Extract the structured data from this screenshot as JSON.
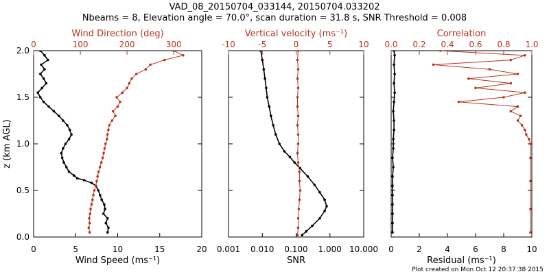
{
  "title": {
    "line1": "VAD_08_20150704_033144, 20150704.033202",
    "line2": "Nbeams = 8, Elevation angle = 70.0°, scan duration = 31.8 s, SNR Threshold = 0.008"
  },
  "footer": "Plot created on Mon Oct 12 20:37:38 2015",
  "colors": {
    "black": "#000000",
    "red": "#b5341f"
  },
  "chart_data": [
    {
      "type": "line",
      "panel": "wind",
      "ylabel": "z (km AGL)",
      "ylim": [
        0,
        2
      ],
      "yticks": [
        "0.0",
        "0.5",
        "1.0",
        "1.5",
        "2.0"
      ],
      "bottom_axis": {
        "label": "Wind Speed (ms⁻¹)",
        "range": [
          0,
          20
        ],
        "ticks": [
          "0",
          "5",
          "10",
          "15",
          "20"
        ]
      },
      "top_axis": {
        "label": "Wind Direction (deg)",
        "range": [
          0,
          360
        ],
        "ticks": [
          "0",
          "100",
          "200",
          "300"
        ]
      },
      "series": [
        {
          "color": "#000000",
          "axis": "bottom",
          "points": [
            [
              8.8,
              0.05
            ],
            [
              8.9,
              0.1
            ],
            [
              8.6,
              0.15
            ],
            [
              8.8,
              0.2
            ],
            [
              8.3,
              0.25
            ],
            [
              8.5,
              0.3
            ],
            [
              8.4,
              0.35
            ],
            [
              8.1,
              0.4
            ],
            [
              7.9,
              0.45
            ],
            [
              7.7,
              0.5
            ],
            [
              7.4,
              0.55
            ],
            [
              6.9,
              0.58
            ],
            [
              6.0,
              0.61
            ],
            [
              5.2,
              0.63
            ],
            [
              4.8,
              0.66
            ],
            [
              4.2,
              0.7
            ],
            [
              3.9,
              0.75
            ],
            [
              3.6,
              0.8
            ],
            [
              3.4,
              0.85
            ],
            [
              3.3,
              0.9
            ],
            [
              3.5,
              0.95
            ],
            [
              3.8,
              1.0
            ],
            [
              4.2,
              1.05
            ],
            [
              4.5,
              1.1
            ],
            [
              4.3,
              1.15
            ],
            [
              4.0,
              1.2
            ],
            [
              3.5,
              1.25
            ],
            [
              3.0,
              1.3
            ],
            [
              2.4,
              1.35
            ],
            [
              1.8,
              1.4
            ],
            [
              1.2,
              1.45
            ],
            [
              0.8,
              1.5
            ],
            [
              0.5,
              1.55
            ],
            [
              1.0,
              1.6
            ],
            [
              1.5,
              1.65
            ],
            [
              1.2,
              1.7
            ],
            [
              0.8,
              1.75
            ],
            [
              1.3,
              1.8
            ],
            [
              0.9,
              1.85
            ],
            [
              1.7,
              1.9
            ],
            [
              1.3,
              1.95
            ],
            [
              0.8,
              2.0
            ]
          ]
        },
        {
          "color": "#b5341f",
          "axis": "top",
          "points": [
            [
              120,
              0.05
            ],
            [
              118,
              0.1
            ],
            [
              120,
              0.15
            ],
            [
              119,
              0.2
            ],
            [
              121,
              0.25
            ],
            [
              122,
              0.3
            ],
            [
              124,
              0.35
            ],
            [
              126,
              0.4
            ],
            [
              128,
              0.45
            ],
            [
              130,
              0.5
            ],
            [
              133,
              0.55
            ],
            [
              135,
              0.6
            ],
            [
              137,
              0.65
            ],
            [
              139,
              0.7
            ],
            [
              142,
              0.75
            ],
            [
              145,
              0.8
            ],
            [
              148,
              0.85
            ],
            [
              150,
              0.9
            ],
            [
              152,
              0.95
            ],
            [
              154,
              1.0
            ],
            [
              157,
              1.05
            ],
            [
              158,
              1.1
            ],
            [
              160,
              1.15
            ],
            [
              162,
              1.2
            ],
            [
              168,
              1.25
            ],
            [
              175,
              1.3
            ],
            [
              170,
              1.35
            ],
            [
              180,
              1.4
            ],
            [
              185,
              1.45
            ],
            [
              178,
              1.5
            ],
            [
              190,
              1.55
            ],
            [
              200,
              1.6
            ],
            [
              205,
              1.65
            ],
            [
              210,
              1.7
            ],
            [
              220,
              1.75
            ],
            [
              240,
              1.8
            ],
            [
              250,
              1.85
            ],
            [
              280,
              1.9
            ],
            [
              320,
              1.95
            ],
            [
              300,
              2.0
            ]
          ]
        }
      ]
    },
    {
      "type": "line",
      "panel": "snr",
      "xscale": "log",
      "ylim": [
        0,
        2
      ],
      "bottom_axis": {
        "label": "SNR",
        "range": [
          0.001,
          10
        ],
        "ticks": [
          "0.001",
          "0.010",
          "0.100",
          "1.000",
          "10.000"
        ]
      },
      "top_axis": {
        "label": "Vertical velocity (ms⁻¹)",
        "range": [
          -10,
          10
        ],
        "ticks": [
          "-10",
          "-5",
          "0",
          "5",
          "10"
        ]
      },
      "series": [
        {
          "color": "#000000",
          "axis": "bottom",
          "points": [
            [
              0.15,
              0.02
            ],
            [
              0.2,
              0.06
            ],
            [
              0.3,
              0.12
            ],
            [
              0.5,
              0.2
            ],
            [
              0.7,
              0.28
            ],
            [
              0.8,
              0.33
            ],
            [
              0.7,
              0.4
            ],
            [
              0.5,
              0.48
            ],
            [
              0.35,
              0.56
            ],
            [
              0.22,
              0.65
            ],
            [
              0.13,
              0.74
            ],
            [
              0.09,
              0.8
            ],
            [
              0.065,
              0.86
            ],
            [
              0.045,
              0.92
            ],
            [
              0.032,
              1.0
            ],
            [
              0.025,
              1.1
            ],
            [
              0.021,
              1.2
            ],
            [
              0.018,
              1.3
            ],
            [
              0.016,
              1.4
            ],
            [
              0.014,
              1.5
            ],
            [
              0.013,
              1.6
            ],
            [
              0.012,
              1.7
            ],
            [
              0.011,
              1.8
            ],
            [
              0.01,
              1.9
            ],
            [
              0.009,
              2.0
            ]
          ]
        },
        {
          "color": "#b5341f",
          "axis": "top",
          "points": [
            [
              0.2,
              0.02
            ],
            [
              0.3,
              0.1
            ],
            [
              0.3,
              0.2
            ],
            [
              0.4,
              0.3
            ],
            [
              0.5,
              0.4
            ],
            [
              0.6,
              0.5
            ],
            [
              0.5,
              0.6
            ],
            [
              0.5,
              0.7
            ],
            [
              0.3,
              0.8
            ],
            [
              0.2,
              0.9
            ],
            [
              0.3,
              1.0
            ],
            [
              0.3,
              1.1
            ],
            [
              0.2,
              1.2
            ],
            [
              0.3,
              1.3
            ],
            [
              0.2,
              1.4
            ],
            [
              0.2,
              1.5
            ],
            [
              0.3,
              1.6
            ],
            [
              0.2,
              1.7
            ],
            [
              0.3,
              1.8
            ],
            [
              0.2,
              1.9
            ],
            [
              0.3,
              2.0
            ]
          ]
        }
      ]
    },
    {
      "type": "line",
      "panel": "residual",
      "ylim": [
        0,
        2
      ],
      "bottom_axis": {
        "label": "Residual (ms⁻¹)",
        "range": [
          0,
          10
        ],
        "ticks": [
          "0",
          "2",
          "4",
          "6",
          "8",
          "10"
        ]
      },
      "top_axis": {
        "label": "Correlation",
        "range": [
          0,
          1
        ],
        "ticks": [
          "0.0",
          "0.2",
          "0.4",
          "0.6",
          "0.8",
          "1.0"
        ]
      },
      "series": [
        {
          "color": "#000000",
          "axis": "bottom",
          "points": [
            [
              0.1,
              0.05
            ],
            [
              0.1,
              0.15
            ],
            [
              0.1,
              0.25
            ],
            [
              0.1,
              0.35
            ],
            [
              0.1,
              0.45
            ],
            [
              0.1,
              0.55
            ],
            [
              0.1,
              0.65
            ],
            [
              0.15,
              0.75
            ],
            [
              0.1,
              0.85
            ],
            [
              0.15,
              0.95
            ],
            [
              0.15,
              1.05
            ],
            [
              0.2,
              1.15
            ],
            [
              0.2,
              1.25
            ],
            [
              0.15,
              1.35
            ],
            [
              0.2,
              1.45
            ],
            [
              0.25,
              1.55
            ],
            [
              0.2,
              1.65
            ],
            [
              0.25,
              1.75
            ],
            [
              0.2,
              1.85
            ],
            [
              0.25,
              1.95
            ],
            [
              0.2,
              2.0
            ]
          ]
        },
        {
          "color": "#b5341f",
          "axis": "top",
          "points": [
            [
              0.99,
              0.05
            ],
            [
              0.99,
              0.3
            ],
            [
              0.99,
              0.6
            ],
            [
              0.99,
              0.85
            ],
            [
              0.99,
              1.0
            ],
            [
              0.98,
              1.05
            ],
            [
              0.96,
              1.1
            ],
            [
              0.95,
              1.15
            ],
            [
              0.93,
              1.2
            ],
            [
              0.9,
              1.25
            ],
            [
              0.92,
              1.3
            ],
            [
              0.85,
              1.35
            ],
            [
              0.9,
              1.4
            ],
            [
              0.48,
              1.45
            ],
            [
              0.8,
              1.5
            ],
            [
              0.95,
              1.55
            ],
            [
              0.6,
              1.6
            ],
            [
              0.85,
              1.65
            ],
            [
              0.55,
              1.7
            ],
            [
              0.9,
              1.75
            ],
            [
              0.7,
              1.8
            ],
            [
              0.3,
              1.85
            ],
            [
              0.85,
              1.9
            ],
            [
              0.95,
              1.95
            ],
            [
              0.35,
              2.0
            ]
          ]
        }
      ]
    }
  ]
}
